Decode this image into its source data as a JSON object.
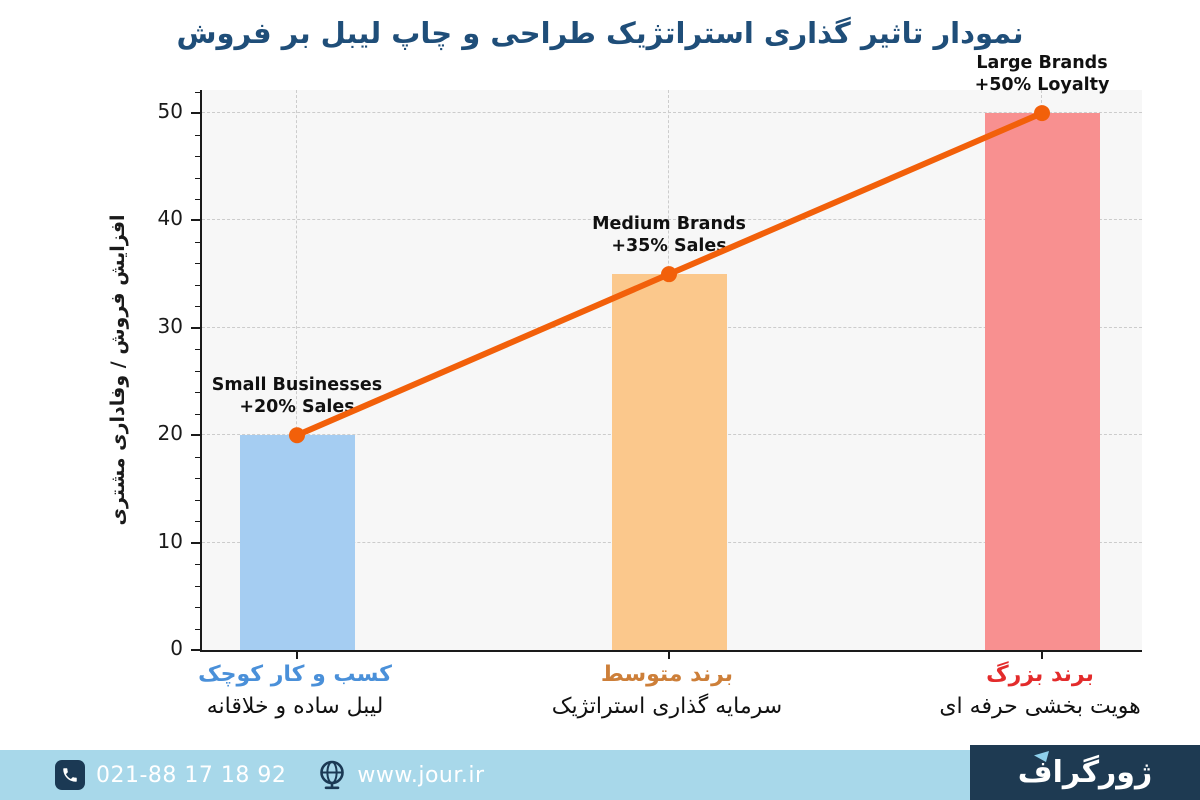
{
  "title": "نمودار تاثیر گذاری استراتژیک طراحی و چاپ لیبل بر فروش",
  "chart_data": {
    "type": "bar",
    "title": "نمودار تاثیر گذاری استراتژیک طراحی و چاپ لیبل بر فروش",
    "ylabel": "افزایش فروش  /  وفاداری مشتری",
    "xlabel": "",
    "yticks": [
      0,
      10,
      20,
      30,
      40,
      50
    ],
    "ylim": [
      0,
      52.15
    ],
    "grid": "dashed",
    "categories": [
      {
        "label_fa": "کسب و کار کوچک",
        "label_color": "#4a90d9",
        "sublabel_fa": "لیبل ساده و خلاقانه",
        "annotation": [
          "Small Businesses",
          "+20% Sales"
        ],
        "value": 20,
        "bar_color": "#a5cdf2"
      },
      {
        "label_fa": "برند متوسط",
        "label_color": "#cd7f39",
        "sublabel_fa": "سرمایه گذاری استراتژیک",
        "annotation": [
          "Medium Brands",
          "+35% Sales"
        ],
        "value": 35,
        "bar_color": "#fbc88c"
      },
      {
        "label_fa": "برند بزرگ",
        "label_color": "#e32b2b",
        "sublabel_fa": "هویت بخشی حرفه ای",
        "annotation": [
          "Large Brands",
          "+50% Loyalty"
        ],
        "value": 50,
        "bar_color": "#f89090"
      }
    ],
    "line": {
      "name": "trend",
      "values": [
        20,
        35,
        50
      ],
      "color": "#f2600a"
    }
  },
  "colors": {
    "title": "#1f4e79",
    "plot_bg": "#f7f7f7",
    "grid": "#cccccc",
    "axis": "#1a1a1a",
    "annotation_text": "#111111"
  },
  "footer": {
    "bg": "#a8d8ea",
    "phone": "021-88 17 18 92",
    "website": "www.jour.ir",
    "logo_text": "ژورگراف",
    "logo_bg": "#1e3a52",
    "logo_accent": "#8ed0ec",
    "icon_color": "#1b3954",
    "text_color": "#ffffff"
  }
}
